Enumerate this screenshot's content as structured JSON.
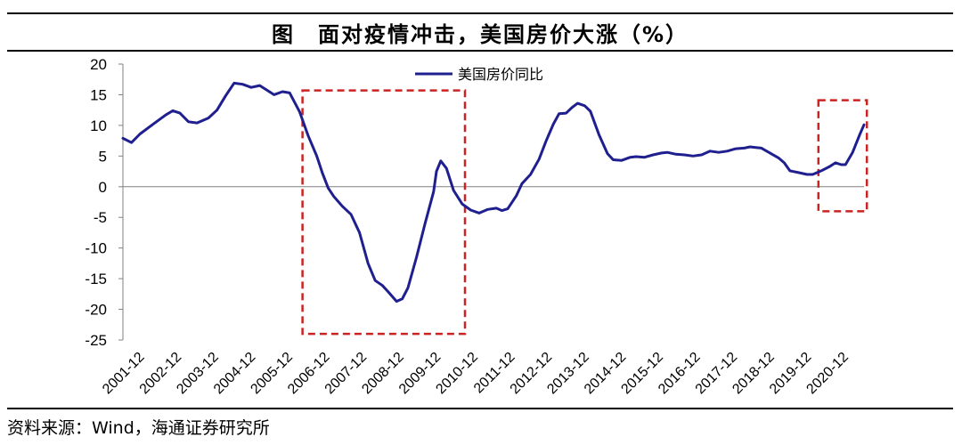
{
  "title": "图　面对疫情冲击，美国房价大涨（%）",
  "source": "资料来源：Wind，海通证券研究所",
  "colors": {
    "series": "#1f1f8f",
    "highlight_box": "#cc2222",
    "axis": "#808080"
  },
  "chart_data": {
    "type": "line",
    "title": "",
    "xlabel": "",
    "ylabel": "",
    "ylim": [
      -25,
      20
    ],
    "yticks": [
      20,
      15,
      10,
      5,
      0,
      -5,
      -10,
      -15,
      -20,
      -25
    ],
    "xticks": [
      "2001-12",
      "2002-12",
      "2003-12",
      "2004-12",
      "2005-12",
      "2006-12",
      "2007-12",
      "2008-12",
      "2009-12",
      "2010-12",
      "2011-12",
      "2012-12",
      "2013-12",
      "2014-12",
      "2015-12",
      "2016-12",
      "2017-12",
      "2018-12",
      "2019-12",
      "2020-12"
    ],
    "legend": {
      "position": "top-center"
    },
    "series": [
      {
        "name": "美国房价同比",
        "points": [
          [
            2001.0,
            7.9
          ],
          [
            2001.3,
            7.2
          ],
          [
            2001.6,
            8.6
          ],
          [
            2002.0,
            10.0
          ],
          [
            2002.5,
            11.7
          ],
          [
            2002.75,
            12.4
          ],
          [
            2003.0,
            12.0
          ],
          [
            2003.3,
            10.6
          ],
          [
            2003.6,
            10.4
          ],
          [
            2004.0,
            11.2
          ],
          [
            2004.3,
            12.5
          ],
          [
            2004.6,
            14.8
          ],
          [
            2004.9,
            16.9
          ],
          [
            2005.2,
            16.7
          ],
          [
            2005.5,
            16.2
          ],
          [
            2005.8,
            16.5
          ],
          [
            2006.1,
            15.6
          ],
          [
            2006.3,
            15.0
          ],
          [
            2006.6,
            15.5
          ],
          [
            2006.85,
            15.3
          ],
          [
            2007.2,
            12.2
          ],
          [
            2007.5,
            8.3
          ],
          [
            2007.8,
            5.0
          ],
          [
            2008.0,
            2.2
          ],
          [
            2008.2,
            -0.2
          ],
          [
            2008.4,
            -1.6
          ],
          [
            2008.7,
            -3.2
          ],
          [
            2009.0,
            -4.5
          ],
          [
            2009.3,
            -7.5
          ],
          [
            2009.6,
            -12.5
          ],
          [
            2009.85,
            -15.3
          ],
          [
            2010.1,
            -16.1
          ],
          [
            2010.3,
            -17.1
          ],
          [
            2010.6,
            -18.7
          ],
          [
            2010.8,
            -18.3
          ],
          [
            2011.0,
            -16.5
          ],
          [
            2011.3,
            -11.5
          ],
          [
            2011.6,
            -6.0
          ],
          [
            2011.9,
            -0.8
          ],
          [
            2012.0,
            2.5
          ],
          [
            2012.15,
            4.2
          ],
          [
            2012.35,
            3.0
          ],
          [
            2012.6,
            -0.6
          ],
          [
            2012.9,
            -2.8
          ],
          [
            2013.2,
            -3.8
          ],
          [
            2013.5,
            -4.3
          ],
          [
            2013.8,
            -3.7
          ],
          [
            2014.1,
            -3.5
          ],
          [
            2014.3,
            -3.9
          ],
          [
            2014.5,
            -3.6
          ],
          [
            2014.8,
            -1.5
          ],
          [
            2015.0,
            0.5
          ],
          [
            2015.3,
            2.0
          ],
          [
            2015.6,
            4.5
          ],
          [
            2015.85,
            7.5
          ],
          [
            2016.1,
            10.2
          ],
          [
            2016.3,
            11.9
          ],
          [
            2016.55,
            12.0
          ],
          [
            2016.75,
            12.9
          ],
          [
            2016.95,
            13.6
          ],
          [
            2017.2,
            13.2
          ],
          [
            2017.4,
            12.3
          ],
          [
            2017.7,
            8.5
          ],
          [
            2018.0,
            5.4
          ],
          [
            2018.2,
            4.4
          ],
          [
            2018.5,
            4.3
          ],
          [
            2018.8,
            4.8
          ],
          [
            2019.0,
            4.9
          ],
          [
            2019.3,
            4.8
          ],
          [
            2019.6,
            5.2
          ],
          [
            2019.9,
            5.5
          ],
          [
            2020.1,
            5.6
          ],
          [
            2020.4,
            5.3
          ],
          [
            2020.7,
            5.2
          ],
          [
            2021.0,
            5.0
          ],
          [
            2021.3,
            5.2
          ],
          [
            2021.6,
            5.8
          ],
          [
            2021.9,
            5.6
          ],
          [
            2022.2,
            5.8
          ],
          [
            2022.5,
            6.2
          ],
          [
            2022.8,
            6.3
          ],
          [
            2023.0,
            6.5
          ],
          [
            2023.2,
            6.4
          ],
          [
            2023.4,
            6.3
          ],
          [
            2023.7,
            5.5
          ],
          [
            2024.0,
            4.7
          ],
          [
            2024.2,
            3.9
          ],
          [
            2024.4,
            2.6
          ],
          [
            2024.7,
            2.3
          ],
          [
            2025.0,
            2.0
          ],
          [
            2025.2,
            2.0
          ],
          [
            2025.5,
            2.6
          ],
          [
            2025.8,
            3.3
          ],
          [
            2026.0,
            3.9
          ],
          [
            2026.2,
            3.6
          ],
          [
            2026.35,
            3.6
          ],
          [
            2026.6,
            5.6
          ],
          [
            2026.85,
            8.5
          ],
          [
            2027.0,
            10.1
          ]
        ]
      }
    ],
    "highlight_boxes": [
      {
        "x_from": 2007.3,
        "x_to": 2013.0,
        "y_from": -24,
        "y_to": 15.7
      },
      {
        "x_from": 2025.4,
        "x_to": 2027.1,
        "y_from": -4,
        "y_to": 14.1
      }
    ]
  }
}
